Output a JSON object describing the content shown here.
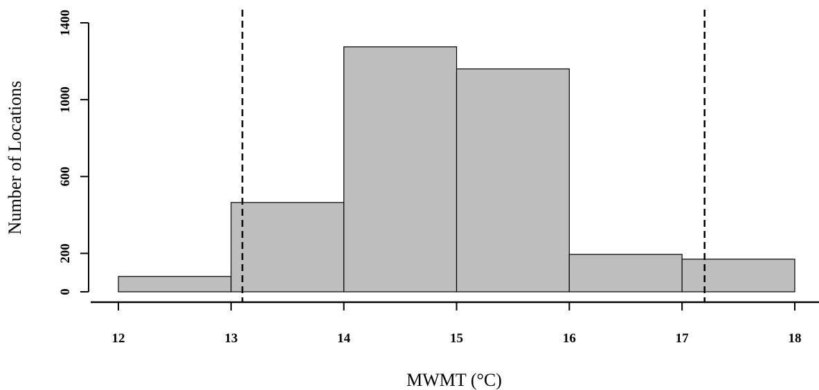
{
  "chart_data": {
    "type": "bar",
    "xlabel": "MWMT (°C)",
    "ylabel": "Number of Locations",
    "xlim": [
      12,
      18
    ],
    "ylim": [
      0,
      1400
    ],
    "xticks": [
      "12",
      "13",
      "14",
      "15",
      "16",
      "17",
      "18"
    ],
    "yticks": [
      "0",
      "200",
      "600",
      "1000",
      "1400"
    ],
    "bins": [
      {
        "x0": 12,
        "x1": 13,
        "count": 80
      },
      {
        "x0": 13,
        "x1": 14,
        "count": 465
      },
      {
        "x0": 14,
        "x1": 15,
        "count": 1275
      },
      {
        "x0": 15,
        "x1": 16,
        "count": 1160
      },
      {
        "x0": 16,
        "x1": 17,
        "count": 195
      },
      {
        "x0": 17,
        "x1": 18,
        "count": 170
      }
    ],
    "reference_lines": [
      13.1,
      17.2
    ],
    "reference_line_style": "dashed",
    "bar_color": "#bebebe",
    "grid": false
  }
}
